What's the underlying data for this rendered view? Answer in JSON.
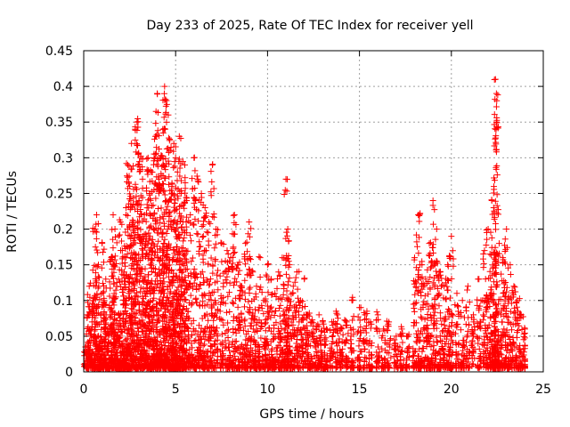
{
  "chart_data": {
    "type": "scatter",
    "title": "Day 233 of 2025, Rate Of TEC Index for receiver yell",
    "xlabel": "GPS time / hours",
    "ylabel": "ROTI / TECUs",
    "xlim": [
      0,
      25
    ],
    "ylim": [
      0,
      0.45
    ],
    "xticks": [
      0,
      5,
      10,
      15,
      20,
      25
    ],
    "xtick_labels": [
      "0",
      "5",
      "10",
      "15",
      "20",
      "25"
    ],
    "yticks": [
      0,
      0.05,
      0.1,
      0.15,
      0.2,
      0.25,
      0.3,
      0.35,
      0.4,
      0.45
    ],
    "ytick_labels": [
      "0",
      "0.05",
      "0.1",
      "0.15",
      "0.2",
      "0.25",
      "0.3",
      "0.35",
      "0.4",
      "0.45"
    ],
    "grid": true,
    "marker": "+",
    "color": "#ff0000",
    "series": [
      {
        "name": "ROTI",
        "points": [
          [
            0.1,
            0.03
          ],
          [
            0.2,
            0.08
          ],
          [
            0.3,
            0.12
          ],
          [
            0.4,
            0.05
          ],
          [
            0.5,
            0.1
          ],
          [
            0.6,
            0.2
          ],
          [
            0.7,
            0.22
          ],
          [
            0.8,
            0.15
          ],
          [
            0.9,
            0.04
          ],
          [
            1.0,
            0.18
          ],
          [
            1.1,
            0.1
          ],
          [
            1.2,
            0.13
          ],
          [
            1.3,
            0.06
          ],
          [
            1.4,
            0.09
          ],
          [
            1.5,
            0.16
          ],
          [
            1.6,
            0.22
          ],
          [
            1.7,
            0.2
          ],
          [
            1.8,
            0.12
          ],
          [
            1.9,
            0.08
          ],
          [
            2.0,
            0.21
          ],
          [
            2.1,
            0.17
          ],
          [
            2.2,
            0.14
          ],
          [
            2.3,
            0.23
          ],
          [
            2.4,
            0.29
          ],
          [
            2.5,
            0.26
          ],
          [
            2.6,
            0.32
          ],
          [
            2.7,
            0.2
          ],
          [
            2.8,
            0.34
          ],
          [
            2.9,
            0.35
          ],
          [
            3.0,
            0.24
          ],
          [
            3.1,
            0.3
          ],
          [
            3.2,
            0.27
          ],
          [
            3.3,
            0.22
          ],
          [
            3.4,
            0.19
          ],
          [
            3.5,
            0.3
          ],
          [
            3.6,
            0.25
          ],
          [
            3.7,
            0.28
          ],
          [
            3.8,
            0.2
          ],
          [
            3.9,
            0.33
          ],
          [
            4.0,
            0.39
          ],
          [
            4.1,
            0.27
          ],
          [
            4.2,
            0.3
          ],
          [
            4.3,
            0.34
          ],
          [
            4.4,
            0.4
          ],
          [
            4.5,
            0.38
          ],
          [
            4.6,
            0.36
          ],
          [
            4.7,
            0.31
          ],
          [
            4.8,
            0.26
          ],
          [
            4.9,
            0.32
          ],
          [
            5.0,
            0.3
          ],
          [
            5.1,
            0.28
          ],
          [
            5.2,
            0.33
          ],
          [
            5.3,
            0.25
          ],
          [
            5.4,
            0.21
          ],
          [
            5.5,
            0.29
          ],
          [
            5.6,
            0.24
          ],
          [
            5.8,
            0.22
          ],
          [
            6.0,
            0.3
          ],
          [
            6.2,
            0.27
          ],
          [
            6.4,
            0.25
          ],
          [
            6.6,
            0.23
          ],
          [
            6.8,
            0.21
          ],
          [
            7.0,
            0.29
          ],
          [
            7.2,
            0.2
          ],
          [
            7.5,
            0.18
          ],
          [
            7.8,
            0.17
          ],
          [
            8.0,
            0.16
          ],
          [
            8.2,
            0.22
          ],
          [
            8.4,
            0.15
          ],
          [
            8.6,
            0.12
          ],
          [
            8.8,
            0.18
          ],
          [
            9.0,
            0.21
          ],
          [
            9.2,
            0.14
          ],
          [
            9.4,
            0.12
          ],
          [
            9.6,
            0.16
          ],
          [
            9.8,
            0.1
          ],
          [
            10.0,
            0.15
          ],
          [
            10.2,
            0.13
          ],
          [
            10.4,
            0.11
          ],
          [
            10.6,
            0.14
          ],
          [
            10.8,
            0.16
          ],
          [
            11.0,
            0.27
          ],
          [
            11.1,
            0.2
          ],
          [
            11.2,
            0.15
          ],
          [
            11.4,
            0.12
          ],
          [
            11.6,
            0.14
          ],
          [
            11.8,
            0.1
          ],
          [
            12.0,
            0.13
          ],
          [
            12.2,
            0.08
          ],
          [
            12.4,
            0.07
          ],
          [
            12.6,
            0.06
          ],
          [
            12.8,
            0.08
          ],
          [
            13.0,
            0.07
          ],
          [
            13.2,
            0.06
          ],
          [
            13.5,
            0.07
          ],
          [
            13.8,
            0.08
          ],
          [
            14.0,
            0.06
          ],
          [
            14.3,
            0.07
          ],
          [
            14.6,
            0.1
          ],
          [
            15.0,
            0.09
          ],
          [
            15.3,
            0.08
          ],
          [
            15.6,
            0.07
          ],
          [
            16.0,
            0.08
          ],
          [
            16.3,
            0.06
          ],
          [
            16.6,
            0.07
          ],
          [
            17.0,
            0.05
          ],
          [
            17.3,
            0.06
          ],
          [
            17.6,
            0.05
          ],
          [
            18.0,
            0.16
          ],
          [
            18.2,
            0.22
          ],
          [
            18.4,
            0.15
          ],
          [
            18.6,
            0.13
          ],
          [
            18.8,
            0.18
          ],
          [
            19.0,
            0.24
          ],
          [
            19.2,
            0.2
          ],
          [
            19.4,
            0.14
          ],
          [
            19.6,
            0.12
          ],
          [
            19.8,
            0.15
          ],
          [
            20.0,
            0.19
          ],
          [
            20.3,
            0.11
          ],
          [
            20.6,
            0.1
          ],
          [
            20.9,
            0.12
          ],
          [
            21.2,
            0.08
          ],
          [
            21.5,
            0.13
          ],
          [
            21.8,
            0.17
          ],
          [
            22.0,
            0.2
          ],
          [
            22.2,
            0.24
          ],
          [
            22.3,
            0.23
          ],
          [
            22.4,
            0.41
          ],
          [
            22.45,
            0.39
          ],
          [
            22.6,
            0.18
          ],
          [
            22.8,
            0.16
          ],
          [
            23.0,
            0.2
          ],
          [
            23.2,
            0.15
          ],
          [
            23.4,
            0.12
          ],
          [
            23.6,
            0.1
          ],
          [
            23.8,
            0.08
          ],
          [
            24.0,
            0.06
          ]
        ]
      }
    ]
  }
}
